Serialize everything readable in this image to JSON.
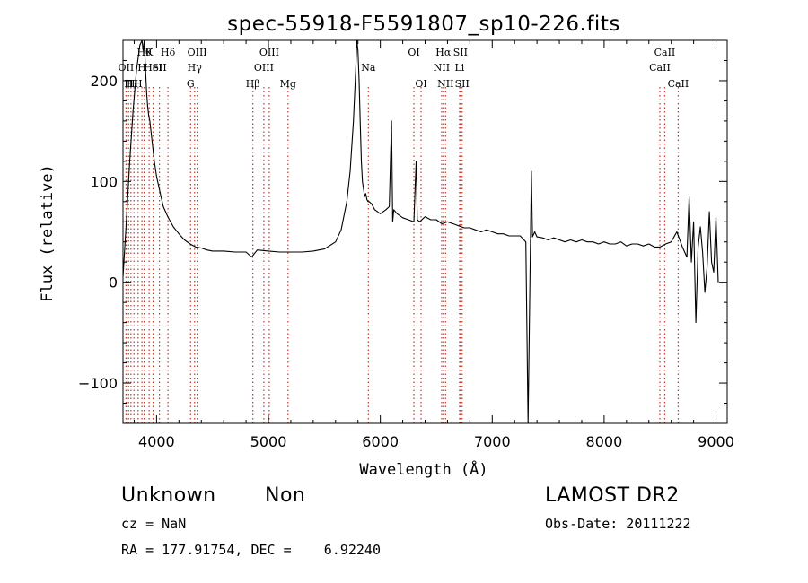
{
  "chart_data": {
    "type": "line",
    "title": "spec-55918-F5591807_sp10-226.fits",
    "xlabel": "Wavelength (Å)",
    "ylabel": "Flux (relative)",
    "xlim": [
      3700,
      9100
    ],
    "ylim": [
      -140,
      240
    ],
    "xticks": [
      4000,
      5000,
      6000,
      7000,
      8000,
      9000
    ],
    "yticks": [
      -100,
      0,
      100,
      200
    ],
    "grid": false,
    "series": [
      {
        "x": [
          3700,
          3730,
          3760,
          3790,
          3820,
          3850,
          3870,
          3880,
          3890,
          3900,
          3910,
          3920,
          3930,
          3940,
          3960,
          3980,
          4000,
          4030,
          4060,
          4100,
          4150,
          4200,
          4250,
          4300,
          4350,
          4400,
          4450,
          4500,
          4600,
          4700,
          4800,
          4850,
          4900,
          5000,
          5100,
          5200,
          5300,
          5400,
          5500,
          5600,
          5650,
          5700,
          5730,
          5760,
          5780,
          5790,
          5800,
          5810,
          5820,
          5830,
          5840,
          5850,
          5860,
          5870,
          5880,
          5890,
          5900,
          5920,
          5950,
          6000,
          6050,
          6080,
          6100,
          6110,
          6120,
          6150,
          6200,
          6250,
          6300,
          6320,
          6330,
          6350,
          6400,
          6450,
          6500,
          6550,
          6600,
          6650,
          6700,
          6750,
          6800,
          6850,
          6900,
          6950,
          7000,
          7050,
          7100,
          7150,
          7200,
          7250,
          7300,
          7320,
          7340,
          7350,
          7360,
          7380,
          7400,
          7450,
          7500,
          7550,
          7600,
          7650,
          7700,
          7750,
          7800,
          7850,
          7900,
          7950,
          8000,
          8050,
          8100,
          8150,
          8200,
          8250,
          8300,
          8350,
          8400,
          8450,
          8500,
          8550,
          8600,
          8650,
          8700,
          8720,
          8740,
          8760,
          8780,
          8800,
          8820,
          8840,
          8860,
          8880,
          8900,
          8920,
          8940,
          8960,
          8980,
          9000,
          9020
        ],
        "y": [
          5,
          60,
          120,
          170,
          210,
          235,
          250,
          230,
          250,
          215,
          190,
          175,
          165,
          160,
          140,
          120,
          105,
          90,
          75,
          65,
          55,
          48,
          42,
          38,
          35,
          34,
          32,
          31,
          31,
          30,
          30,
          25,
          32,
          31,
          30,
          30,
          30,
          31,
          33,
          40,
          52,
          80,
          110,
          160,
          210,
          240,
          230,
          200,
          160,
          120,
          100,
          92,
          85,
          88,
          82,
          80,
          80,
          78,
          72,
          68,
          72,
          75,
          160,
          60,
          72,
          68,
          64,
          62,
          60,
          120,
          62,
          60,
          65,
          62,
          62,
          58,
          60,
          58,
          56,
          54,
          54,
          52,
          50,
          52,
          50,
          48,
          48,
          46,
          46,
          46,
          40,
          -140,
          30,
          110,
          45,
          50,
          45,
          44,
          42,
          44,
          42,
          40,
          42,
          40,
          42,
          40,
          40,
          38,
          40,
          38,
          38,
          40,
          36,
          38,
          38,
          36,
          38,
          35,
          35,
          38,
          40,
          50,
          35,
          30,
          25,
          85,
          20,
          60,
          -40,
          35,
          55,
          30,
          -10,
          15,
          70,
          20,
          10,
          65,
          0
        ]
      }
    ],
    "line_ids": [
      {
        "x": 3727,
        "row": 1,
        "label": "OII"
      },
      {
        "x": 3750,
        "row": 2,
        "label": "H"
      },
      {
        "x": 3771,
        "row": 2,
        "label": "H"
      },
      {
        "x": 3798,
        "row": 2,
        "label": "H"
      },
      {
        "x": 3835,
        "row": 2,
        "label": "H"
      },
      {
        "x": 3869,
        "row": 1,
        "label": "H"
      },
      {
        "x": 3889,
        "row": 0,
        "label": "Hθ"
      },
      {
        "x": 3934,
        "row": 0,
        "label": "K"
      },
      {
        "x": 3969,
        "row": 1,
        "label": "HeI"
      },
      {
        "x": 4026,
        "row": 1,
        "label": "SII"
      },
      {
        "x": 4102,
        "row": 0,
        "label": "Hδ"
      },
      {
        "x": 4340,
        "row": 1,
        "label": "Hγ"
      },
      {
        "x": 4304,
        "row": 2,
        "label": "G"
      },
      {
        "x": 4363,
        "row": 0,
        "label": "OIII"
      },
      {
        "x": 4861,
        "row": 2,
        "label": "Hβ"
      },
      {
        "x": 4959,
        "row": 1,
        "label": "OIII"
      },
      {
        "x": 5007,
        "row": 0,
        "label": "OIII"
      },
      {
        "x": 5175,
        "row": 2,
        "label": "Mg"
      },
      {
        "x": 5893,
        "row": 1,
        "label": "Na"
      },
      {
        "x": 6300,
        "row": 0,
        "label": "OI"
      },
      {
        "x": 6364,
        "row": 2,
        "label": "OI"
      },
      {
        "x": 6548,
        "row": 1,
        "label": "NII"
      },
      {
        "x": 6563,
        "row": 0,
        "label": "Hα"
      },
      {
        "x": 6583,
        "row": 2,
        "label": "NII"
      },
      {
        "x": 6708,
        "row": 1,
        "label": "Li"
      },
      {
        "x": 6716,
        "row": 0,
        "label": "SII"
      },
      {
        "x": 6731,
        "row": 2,
        "label": "SII"
      },
      {
        "x": 8498,
        "row": 1,
        "label": "CaII"
      },
      {
        "x": 8542,
        "row": 0,
        "label": "CaII"
      },
      {
        "x": 8662,
        "row": 2,
        "label": "CaII"
      }
    ]
  },
  "footer": {
    "classification": "Unknown",
    "subclass": "Non",
    "survey": "LAMOST DR2",
    "redshift": "cz = NaN",
    "obs_date": "Obs-Date: 20111222",
    "coords": "RA = 177.91754, DEC =    6.92240"
  }
}
